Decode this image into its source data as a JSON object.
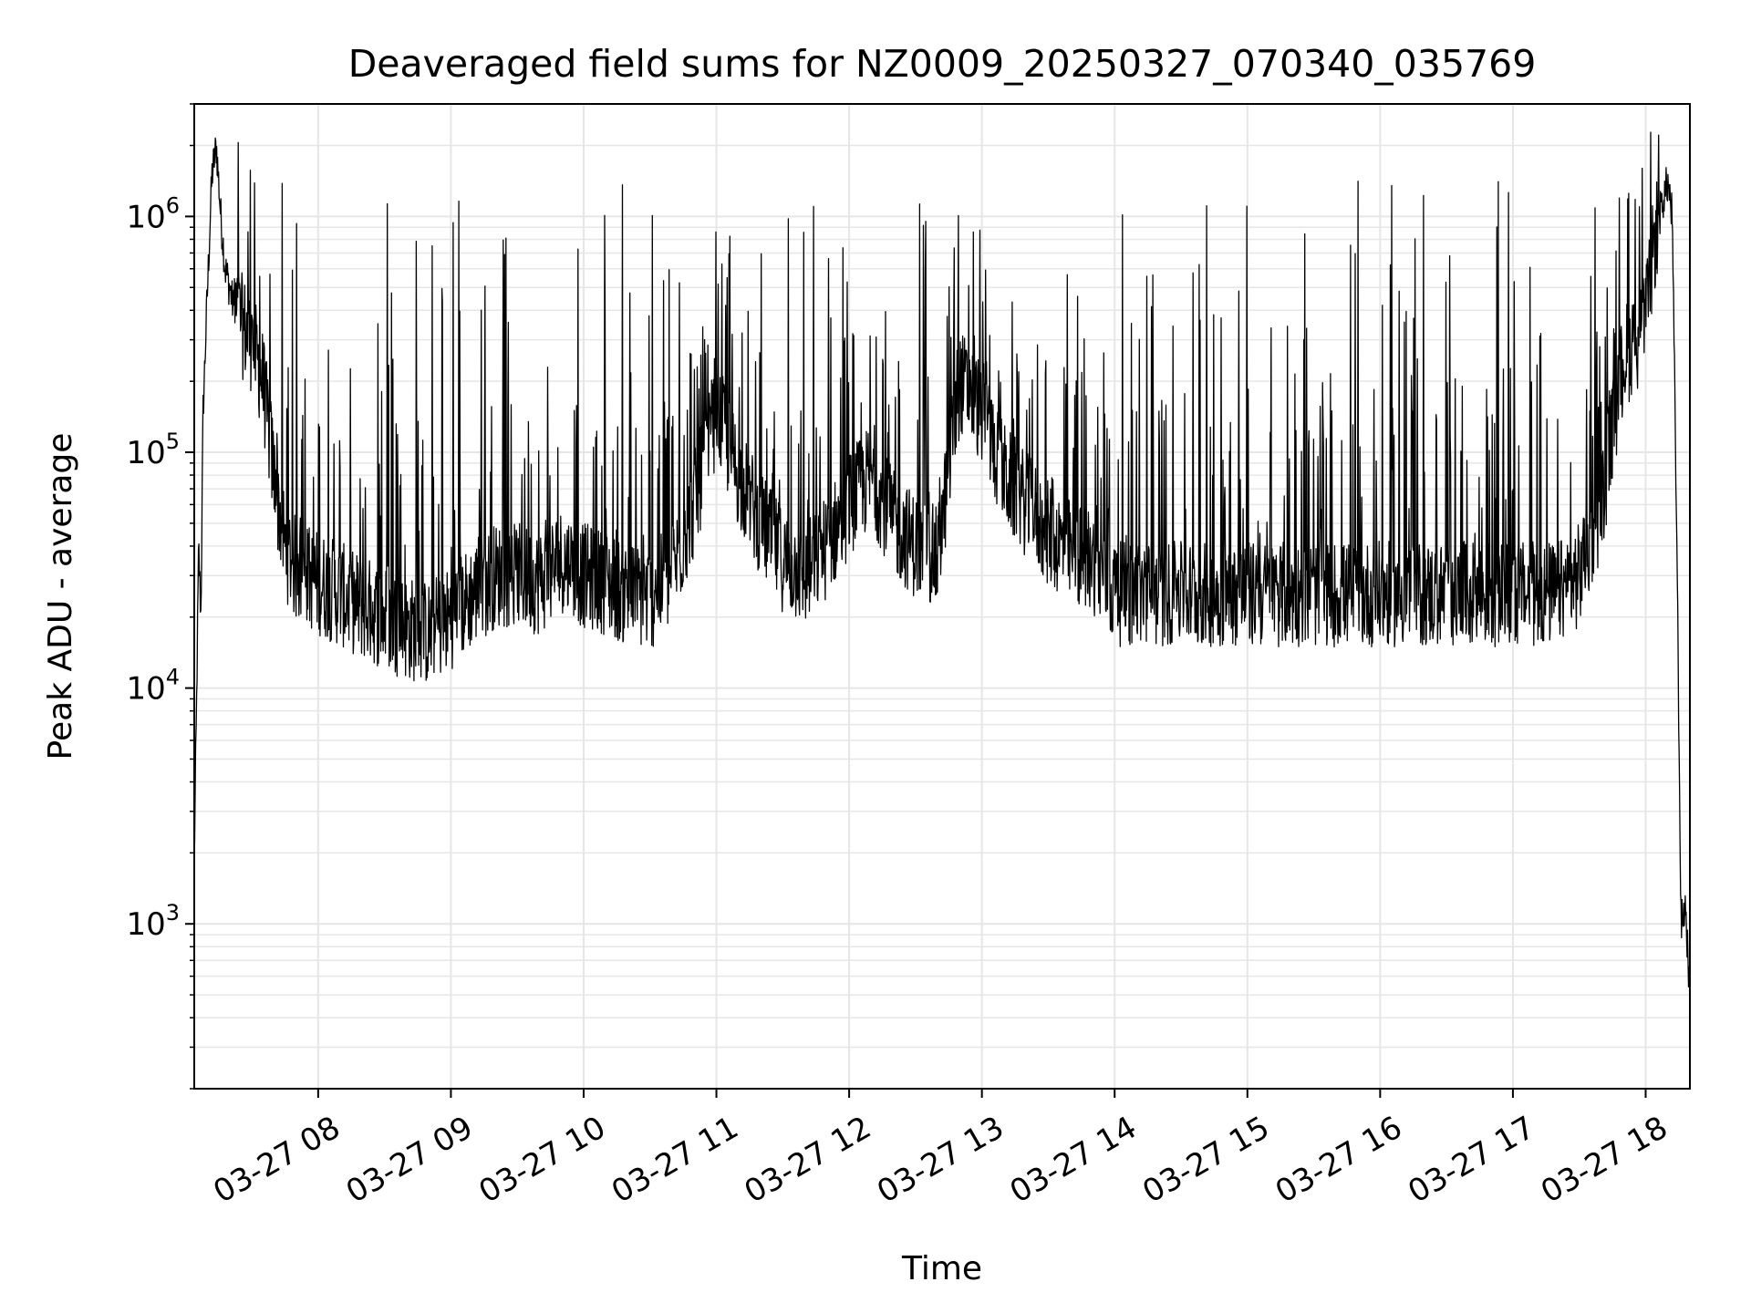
{
  "chart_data": {
    "type": "line",
    "title": "Deaveraged field sums for NZ0009_20250327_070340_035769",
    "xlabel": "Time",
    "ylabel": "Peak ADU - average",
    "x_range": [
      "03-27 07:04",
      "03-27 18:20"
    ],
    "y_scale": "log",
    "ylim": [
      200,
      3000000
    ],
    "grid": true,
    "line_color": "#000000",
    "grid_color": "#e6e6e6",
    "x_ticks": [
      "03-27 08",
      "03-27 09",
      "03-27 10",
      "03-27 11",
      "03-27 12",
      "03-27 13",
      "03-27 14",
      "03-27 15",
      "03-27 16",
      "03-27 17",
      "03-27 18"
    ],
    "y_ticks": [
      {
        "base": "10",
        "exp": "3",
        "value": 1000
      },
      {
        "base": "10",
        "exp": "4",
        "value": 10000
      },
      {
        "base": "10",
        "exp": "5",
        "value": 100000
      },
      {
        "base": "10",
        "exp": "6",
        "value": 1000000
      }
    ],
    "series": [
      {
        "x": [
          "07:04",
          "07:05",
          "07:06",
          "07:07",
          "07:08",
          "07:10",
          "07:12",
          "07:14",
          "07:16",
          "07:18",
          "07:20",
          "07:22",
          "07:25",
          "07:30",
          "07:35",
          "07:40",
          "07:45",
          "07:50",
          "07:55",
          "08:00",
          "08:10",
          "08:20",
          "08:30",
          "08:40",
          "08:50",
          "09:00",
          "09:10",
          "09:20",
          "09:30",
          "09:40",
          "09:50",
          "10:00",
          "10:10",
          "10:20",
          "10:30",
          "10:40",
          "10:50",
          "11:00",
          "11:10",
          "11:20",
          "11:30",
          "11:40",
          "11:50",
          "12:00",
          "12:10",
          "12:20",
          "12:30",
          "12:40",
          "12:50",
          "13:00",
          "13:10",
          "13:20",
          "13:30",
          "13:40",
          "13:50",
          "14:00",
          "14:20",
          "14:40",
          "15:00",
          "15:20",
          "15:40",
          "16:00",
          "16:20",
          "16:40",
          "17:00",
          "17:20",
          "17:30",
          "17:40",
          "17:50",
          "18:00",
          "18:04",
          "18:08",
          "18:10",
          "18:12",
          "18:14",
          "18:16",
          "18:18",
          "18:20"
        ],
        "y": [
          1800,
          8000,
          40000,
          20000,
          150000,
          500000,
          1500000,
          2000000,
          1000000,
          600000,
          500000,
          400000,
          350000,
          300000,
          200000,
          80000,
          40000,
          32000,
          30000,
          28000,
          25000,
          22000,
          20000,
          18000,
          17000,
          20000,
          25000,
          30000,
          30000,
          28000,
          35000,
          30000,
          28000,
          25000,
          24000,
          30000,
          60000,
          150000,
          80000,
          50000,
          35000,
          30000,
          40000,
          60000,
          80000,
          50000,
          40000,
          35000,
          200000,
          150000,
          80000,
          60000,
          45000,
          38000,
          35000,
          25000,
          25000,
          25000,
          25000,
          25000,
          25000,
          25000,
          25000,
          25000,
          25000,
          25000,
          30000,
          60000,
          250000,
          350000,
          800000,
          1200000,
          1400000,
          1000000,
          50000,
          1000,
          1200,
          500
        ]
      }
    ]
  }
}
